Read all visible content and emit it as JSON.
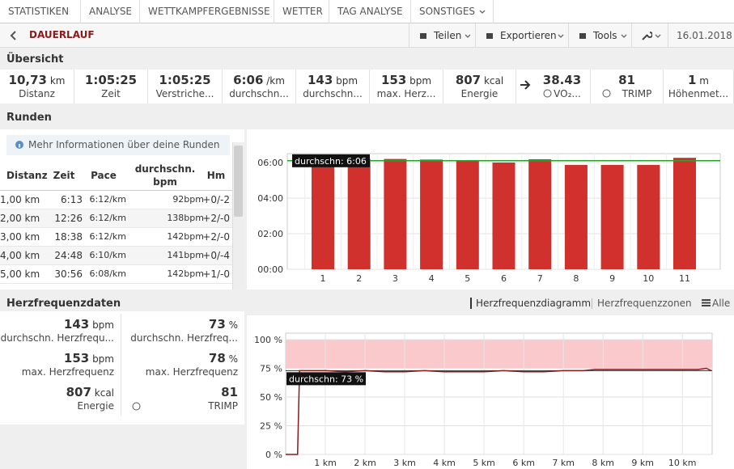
{
  "nav": {
    "tabs": [
      "STATISTIKEN",
      "ANALYSE",
      "WETTKAMPFERGEBNISSE",
      "WETTER",
      "TAG ANALYSE",
      "SONSTIGES"
    ]
  },
  "toolbar": {
    "title": "DAUERLAUF",
    "buttons": [
      "Teilen",
      "Exportieren",
      "Tools"
    ],
    "date": "16.01.2018"
  },
  "overview": {
    "heading": "Übersicht",
    "stats": [
      {
        "value": "10,73",
        "unit": "km",
        "label": "Distanz"
      },
      {
        "value": "1:05:25",
        "label": "Zeit"
      },
      {
        "value": "1:05:25",
        "label": "Verstriche..."
      },
      {
        "value": "6:06",
        "unit": "/km",
        "label": "durchschn..."
      },
      {
        "value": "143",
        "unit": "bpm",
        "label": "durchschn..."
      },
      {
        "value": "153",
        "unit": "bpm",
        "label": "max. Herz..."
      },
      {
        "value": "807",
        "unit": "kcal",
        "label": "Energie"
      },
      {
        "value": "38.43",
        "label": "VO₂..."
      },
      {
        "value": "81",
        "label": "TRIMP"
      },
      {
        "value": "1",
        "unit": "m",
        "label": "Höhenmet..."
      }
    ]
  },
  "laps": {
    "heading": "Runden",
    "info": "Mehr Informationen über deine Runden",
    "columns": [
      "Distanz",
      "Zeit",
      "Pace",
      "durchschn. bpm",
      "Hm"
    ],
    "rows": [
      [
        "1,00 km",
        "6:13",
        "6:12/km",
        "92bpm",
        "+0/-2"
      ],
      [
        "2,00 km",
        "12:26",
        "6:12/km",
        "138bpm",
        "+2/-0"
      ],
      [
        "3,00 km",
        "18:38",
        "6:12/km",
        "142bpm",
        "+2/-0"
      ],
      [
        "4,00 km",
        "24:48",
        "6:10/km",
        "141bpm",
        "+0/-4"
      ],
      [
        "5,00 km",
        "30:56",
        "6:08/km",
        "142bpm",
        "+1/-0"
      ]
    ]
  },
  "heart_rate": {
    "heading": "Herzfrequenzdaten",
    "tabs": [
      "Herzfrequenzdiagramm",
      "Herzfrequenzzonen",
      "Alle"
    ],
    "stats": [
      {
        "value": "143",
        "unit": "bpm",
        "label": "durchschn. Herzfrequ..."
      },
      {
        "value": "73",
        "unit": "%",
        "label": "durchschn. Herzfreq..."
      },
      {
        "value": "153",
        "unit": "bpm",
        "label": "max. Herzfrequenz"
      },
      {
        "value": "78",
        "unit": "%",
        "label": "max. Herzfrequenz"
      },
      {
        "value": "807",
        "unit": "kcal",
        "label": "Energie"
      },
      {
        "value": "81",
        "label": "TRIMP"
      }
    ]
  },
  "chart_data": [
    {
      "type": "bar",
      "categories": [
        "1",
        "2",
        "3",
        "4",
        "5",
        "6",
        "7",
        "8",
        "9",
        "10",
        "11"
      ],
      "values": [
        372,
        372,
        372,
        370,
        368,
        360,
        371,
        352,
        352,
        352,
        376
      ],
      "color": "#d0312d",
      "ylim": [
        0,
        390
      ],
      "yticks": [
        {
          "value": 0,
          "label": "00:00"
        },
        {
          "value": 120,
          "label": "02:00"
        },
        {
          "value": 240,
          "label": "04:00"
        },
        {
          "value": 360,
          "label": "06:00"
        }
      ],
      "grid": true,
      "reference_line": {
        "value": 366,
        "label": "durchschn: 6:06",
        "color": "#2ca02c"
      }
    },
    {
      "type": "line",
      "x": [
        0,
        0.3,
        0.35,
        0.5,
        1,
        1.5,
        2,
        2.5,
        3,
        3.5,
        4,
        4.5,
        5,
        5.5,
        6,
        6.5,
        7,
        7.5,
        7.8,
        8,
        8.5,
        9,
        9.5,
        10,
        10.4,
        10.6,
        10.73
      ],
      "values": [
        0,
        0,
        73,
        73,
        73,
        72,
        73,
        72,
        72,
        73,
        72,
        72,
        72,
        73,
        72,
        72,
        73,
        73,
        74,
        74,
        74,
        74,
        74,
        74,
        74,
        75,
        73
      ],
      "color": "#8b1a1a",
      "xlim": [
        0,
        10.75
      ],
      "xticks": [
        {
          "value": 1,
          "label": "1 km"
        },
        {
          "value": 2,
          "label": "2 km"
        },
        {
          "value": 3,
          "label": "3 km"
        },
        {
          "value": 4,
          "label": "4 km"
        },
        {
          "value": 5,
          "label": "5 km"
        },
        {
          "value": 6,
          "label": "6 km"
        },
        {
          "value": 7,
          "label": "7 km"
        },
        {
          "value": 8,
          "label": "8 km"
        },
        {
          "value": 9,
          "label": "9 km"
        },
        {
          "value": 10,
          "label": "10 km"
        }
      ],
      "ylim": [
        0,
        100
      ],
      "yticks": [
        {
          "value": 0,
          "label": "0 %"
        },
        {
          "value": 25,
          "label": "25 %"
        },
        {
          "value": 50,
          "label": "50 %"
        },
        {
          "value": 75,
          "label": "75 %"
        },
        {
          "value": 100,
          "label": "100 %"
        }
      ],
      "grid": true,
      "shaded_range": [
        75,
        100
      ],
      "reference_line": {
        "value": 73,
        "label": "durchschn: 73 %",
        "color": "#333333"
      }
    }
  ]
}
